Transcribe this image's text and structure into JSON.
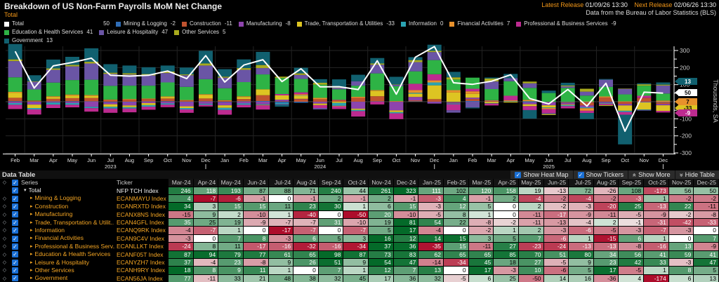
{
  "header": {
    "title": "Breakdown of US Non-Farm Payrolls MoM Net Change",
    "subtitle": "Total",
    "latest_release_label": "Latest Release",
    "latest_release_value": "01/09/26 13:30",
    "next_release_label": "Next Release",
    "next_release_value": "02/06/26 13:30",
    "source": "Data from the Bureau of Labor Statistics (BLS)"
  },
  "legend": {
    "items": [
      {
        "label": "Total",
        "value": "50",
        "color": "#ffffff"
      },
      {
        "label": "Mining & Logging",
        "value": "-2",
        "color": "#2f6db6"
      },
      {
        "label": "Construction",
        "value": "-11",
        "color": "#c0522f"
      },
      {
        "label": "Manufacturing",
        "value": "-8",
        "color": "#8e44ad"
      },
      {
        "label": "Trade, Transportation & Utilities",
        "value": "-33",
        "color": "#ddc422"
      },
      {
        "label": "Information",
        "value": "0",
        "color": "#2ba3b2"
      },
      {
        "label": "Financial Activities",
        "value": "7",
        "color": "#e8912c"
      },
      {
        "label": "Professional & Business Services",
        "value": "-9",
        "color": "#bd2b90"
      },
      {
        "label": "Education & Health Services",
        "value": "41",
        "color": "#2eb345"
      },
      {
        "label": "Leisure & Hospitality",
        "value": "47",
        "color": "#6a55a5"
      },
      {
        "label": "Other Services",
        "value": "5",
        "color": "#a9ab1d"
      },
      {
        "label": "Government",
        "value": "13",
        "color": "#11606f"
      }
    ]
  },
  "chart_data": {
    "type": "bar",
    "stacked": true,
    "overlay_line": "Total",
    "ylabel": "Thousands, SA",
    "ylim": [
      -300,
      300
    ],
    "ytick_step": 100,
    "grid": true,
    "estimated_through": "Feb-24",
    "x": [
      "Feb",
      "Mar",
      "Apr",
      "May",
      "Jun",
      "Jul",
      "Aug",
      "Sep",
      "Oct",
      "Nov",
      "Dec",
      "Jan",
      "Feb",
      "Mar",
      "Apr",
      "May",
      "Jun",
      "Jul",
      "Aug",
      "Sep",
      "Oct",
      "Nov",
      "Dec",
      "Jan",
      "Feb",
      "Mar",
      "Apr",
      "May",
      "Jun",
      "Jul",
      "Aug",
      "Sep",
      "Oct",
      "Nov",
      "Dec"
    ],
    "year_labels": [
      {
        "index": 5,
        "text": "2023"
      },
      {
        "index": 16,
        "text": "2024"
      },
      {
        "index": 28,
        "text": "2025"
      }
    ],
    "dec_marker_indices": [
      10,
      22,
      34
    ],
    "total_line": {
      "name": "Total",
      "color": "#ffffff",
      "values": [
        295,
        80,
        210,
        230,
        255,
        155,
        150,
        155,
        180,
        135,
        270,
        115,
        215,
        246,
        118,
        193,
        87,
        88,
        71,
        240,
        44,
        261,
        323,
        111,
        102,
        120,
        158,
        19,
        -13,
        72,
        -26,
        108,
        -173,
        56,
        50
      ]
    },
    "series": [
      {
        "name": "Mining & Logging",
        "color": "#2f6db6",
        "values": [
          3,
          -2,
          2,
          3,
          2,
          -3,
          -2,
          2,
          3,
          -2,
          2,
          -3,
          2,
          4,
          -7,
          -6,
          -1,
          0,
          -1,
          2,
          -1,
          2,
          -1,
          -3,
          4,
          -1,
          2,
          -4,
          -2,
          -4,
          -2,
          -3,
          1,
          -2,
          -2
        ]
      },
      {
        "name": "Construction",
        "color": "#c0522f",
        "values": [
          20,
          5,
          15,
          18,
          20,
          10,
          12,
          14,
          16,
          8,
          17,
          6,
          14,
          34,
          3,
          15,
          15,
          11,
          23,
          30,
          1,
          6,
          15,
          -3,
          12,
          5,
          0,
          2,
          -2,
          -3,
          -20,
          25,
          -13,
          22,
          -11
        ]
      },
      {
        "name": "Manufacturing",
        "color": "#8e44ad",
        "values": [
          -8,
          -15,
          -5,
          -8,
          -30,
          -12,
          -20,
          -8,
          -10,
          -25,
          -12,
          -18,
          -10,
          -15,
          9,
          2,
          -10,
          1,
          -40,
          0,
          -50,
          20,
          -10,
          -5,
          8,
          1,
          0,
          -11,
          -17,
          -9,
          -11,
          -5,
          -9,
          -2,
          -8
        ]
      },
      {
        "name": "Trade, Transportation & Utilities",
        "color": "#ddc422",
        "values": [
          30,
          -20,
          10,
          15,
          12,
          -15,
          -10,
          -12,
          8,
          -10,
          20,
          -15,
          12,
          35,
          25,
          19,
          -9,
          -7,
          -7,
          31,
          -10,
          19,
          81,
          54,
          22,
          -8,
          -2,
          -11,
          -13,
          -4,
          2,
          -1,
          -31,
          -42,
          -33
        ]
      },
      {
        "name": "Information",
        "color": "#2ba3b2",
        "values": [
          -10,
          -8,
          -12,
          -10,
          -8,
          -10,
          -8,
          -9,
          -7,
          -8,
          -6,
          -12,
          -8,
          -4,
          -7,
          1,
          0,
          -17,
          -7,
          0,
          -7,
          5,
          17,
          -4,
          0,
          -2,
          1,
          2,
          -3,
          -6,
          -5,
          -3,
          -7,
          -3,
          0
        ]
      },
      {
        "name": "Financial Activities",
        "color": "#e8912c",
        "values": [
          5,
          2,
          5,
          6,
          5,
          3,
          4,
          3,
          4,
          2,
          5,
          3,
          4,
          -3,
          0,
          7,
          8,
          -3,
          6,
          5,
          3,
          16,
          12,
          14,
          15,
          3,
          5,
          7,
          -6,
          1,
          -15,
          6,
          1,
          0,
          7
        ]
      },
      {
        "name": "Professional & Business Services",
        "color": "#bd2b90",
        "values": [
          -25,
          -30,
          -20,
          -15,
          -20,
          -25,
          -22,
          -18,
          -15,
          -20,
          -10,
          -28,
          -15,
          -24,
          8,
          11,
          -17,
          -16,
          -32,
          -16,
          -34,
          37,
          36,
          -35,
          15,
          -11,
          27,
          -23,
          -24,
          -13,
          -13,
          -8,
          -16,
          13,
          -9
        ]
      },
      {
        "name": "Education & Health Services",
        "color": "#2eb345",
        "values": [
          85,
          65,
          80,
          85,
          90,
          80,
          78,
          75,
          82,
          77,
          88,
          70,
          83,
          87,
          94,
          79,
          77,
          61,
          65,
          98,
          87,
          73,
          83,
          62,
          65,
          65,
          85,
          70,
          51,
          80,
          34,
          56,
          41,
          59,
          41
        ]
      },
      {
        "name": "Leisure & Hospitality",
        "color": "#6a55a5",
        "values": [
          95,
          45,
          75,
          80,
          95,
          70,
          65,
          60,
          55,
          68,
          80,
          62,
          72,
          37,
          -4,
          23,
          -8,
          9,
          26,
          51,
          9,
          54,
          47,
          -14,
          -34,
          45,
          18,
          27,
          -5,
          9,
          23,
          42,
          33,
          -3,
          47
        ]
      },
      {
        "name": "Other Services",
        "color": "#a9ab1d",
        "values": [
          10,
          3,
          8,
          9,
          10,
          7,
          8,
          8,
          9,
          5,
          12,
          6,
          10,
          18,
          8,
          9,
          11,
          1,
          0,
          7,
          1,
          12,
          7,
          13,
          0,
          17,
          -3,
          10,
          -6,
          5,
          17,
          -5,
          1,
          8,
          5
        ]
      },
      {
        "name": "Government",
        "color": "#11606f",
        "values": [
          90,
          35,
          52,
          47,
          79,
          50,
          45,
          40,
          35,
          40,
          74,
          44,
          51,
          77,
          -11,
          33,
          21,
          48,
          38,
          32,
          45,
          17,
          36,
          32,
          -5,
          6,
          25,
          -50,
          14,
          16,
          -36,
          4,
          -174,
          6,
          13
        ]
      }
    ],
    "axis_badges": [
      {
        "label": "13",
        "color": "#11606f",
        "text_color": "#ffffff"
      },
      {
        "label": "50",
        "color": "#ffffff",
        "text_color": "#000000"
      },
      {
        "label": "-33",
        "color": "#ddc422",
        "text_color": "#000000"
      },
      {
        "label": "7",
        "color": "#e8912c",
        "text_color": "#000000"
      },
      {
        "label": "-9",
        "color": "#bd2b90",
        "text_color": "#ffffff"
      }
    ]
  },
  "table": {
    "title": "Data Table",
    "series_header": "Series",
    "ticker_header": "Ticker",
    "controls": [
      {
        "label": "Show Heat Map",
        "icon": "checkbox-checked"
      },
      {
        "label": "Show Tickers",
        "icon": "checkbox-checked"
      },
      {
        "label": "Show More",
        "icon": "chevrons-up"
      },
      {
        "label": "Hide Table",
        "icon": "chevrons-down"
      }
    ],
    "columns": [
      "Mar-24",
      "Apr-24",
      "May-24",
      "Jun-24",
      "Jul-24",
      "Aug-24",
      "Sep-24",
      "Oct-24",
      "Nov-24",
      "Dec-24",
      "Jan-25",
      "Feb-25",
      "Mar-25",
      "Apr-25",
      "May-25",
      "Jun-25",
      "Jul-25",
      "Aug-25",
      "Sep-25",
      "Oct-25",
      "Nov-25",
      "Dec-25"
    ],
    "rows": [
      {
        "name": "Total",
        "ticker": "NFP TCH Index",
        "expanded": true,
        "values": [
          246,
          118,
          193,
          87,
          88,
          71,
          240,
          44,
          261,
          323,
          111,
          102,
          120,
          158,
          19,
          -13,
          72,
          -26,
          108,
          -173,
          56,
          50
        ]
      },
      {
        "name": "Mining & Logging",
        "ticker": "ECANMAYU Index",
        "values": [
          4,
          -7,
          -6,
          -1,
          0,
          -1,
          2,
          -1,
          2,
          -1,
          -3,
          4,
          -1,
          2,
          -4,
          -2,
          -4,
          -2,
          -3,
          1,
          -2,
          -2
        ]
      },
      {
        "name": "Construction",
        "ticker": "ECANRXTD Index",
        "values": [
          34,
          3,
          15,
          15,
          11,
          23,
          30,
          1,
          6,
          15,
          -3,
          12,
          5,
          0,
          2,
          -2,
          -3,
          -20,
          25,
          -13,
          22,
          -11
        ]
      },
      {
        "name": "Manufacturing",
        "ticker": "ECANX8NS Index",
        "values": [
          -15,
          9,
          2,
          -10,
          1,
          -40,
          0,
          -50,
          20,
          -10,
          -5,
          8,
          1,
          0,
          -11,
          -17,
          -9,
          -11,
          -5,
          -9,
          -2,
          -8
        ]
      },
      {
        "name": "Trade, Transportation & Utilit..",
        "ticker": "ECAN4GFL Index",
        "values": [
          35,
          25,
          19,
          -9,
          -7,
          -7,
          31,
          -10,
          19,
          81,
          54,
          22,
          -8,
          -2,
          -11,
          -13,
          -4,
          2,
          -1,
          -31,
          -42,
          -33
        ]
      },
      {
        "name": "Information",
        "ticker": "ECANQ9RK Index",
        "values": [
          -4,
          -7,
          1,
          0,
          -17,
          -7,
          0,
          -7,
          5,
          17,
          -4,
          0,
          -2,
          1,
          2,
          -3,
          -6,
          -5,
          -3,
          -7,
          -3,
          0
        ]
      },
      {
        "name": "Financial Activities",
        "ticker": "ECAN9C4V Index",
        "values": [
          -3,
          0,
          7,
          8,
          -3,
          6,
          5,
          3,
          16,
          12,
          14,
          15,
          3,
          5,
          7,
          -6,
          1,
          -15,
          6,
          1,
          0,
          7
        ]
      },
      {
        "name": "Professional & Business Serv..",
        "ticker": "ECANLLKT Index",
        "values": [
          -24,
          8,
          11,
          -17,
          -16,
          -32,
          -16,
          -34,
          37,
          36,
          -35,
          15,
          -11,
          27,
          -23,
          -24,
          -13,
          -13,
          -8,
          -16,
          13,
          -9
        ]
      },
      {
        "name": "Education & Health Services",
        "ticker": "ECANF05T Index",
        "values": [
          87,
          94,
          79,
          77,
          61,
          65,
          98,
          87,
          73,
          83,
          62,
          65,
          65,
          85,
          70,
          51,
          80,
          34,
          56,
          41,
          59,
          41
        ]
      },
      {
        "name": "Leisure & Hospitality",
        "ticker": "ECANYZH7 Index",
        "values": [
          37,
          -4,
          23,
          -8,
          9,
          26,
          51,
          9,
          54,
          47,
          -14,
          -34,
          45,
          18,
          27,
          -5,
          9,
          23,
          42,
          33,
          -3,
          47
        ]
      },
      {
        "name": "Other Services",
        "ticker": "ECANH9RY Index",
        "values": [
          18,
          8,
          9,
          11,
          1,
          0,
          7,
          1,
          12,
          7,
          13,
          0,
          17,
          -3,
          10,
          -6,
          5,
          17,
          -5,
          1,
          8,
          5
        ]
      },
      {
        "name": "Government",
        "ticker": "ECAN56JA Index",
        "values": [
          77,
          -11,
          33,
          21,
          48,
          38,
          32,
          45,
          17,
          36,
          32,
          -5,
          6,
          25,
          -50,
          14,
          16,
          -36,
          4,
          -174,
          6,
          13
        ]
      }
    ]
  }
}
